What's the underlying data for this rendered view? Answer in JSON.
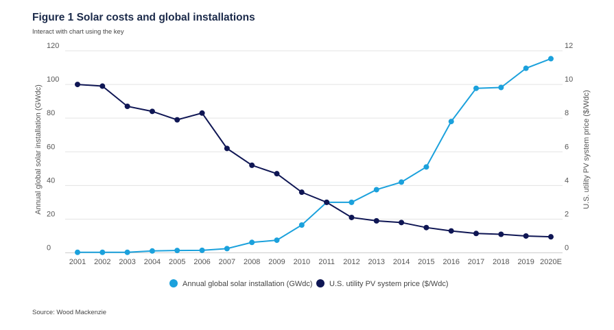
{
  "header": {
    "title": "Figure 1  Solar costs and global installations",
    "subtitle": "Interact with chart using the key"
  },
  "footer": {
    "source": "Source: Wood Mackenzie"
  },
  "chart_data": {
    "type": "line",
    "title": "Solar costs and global installations",
    "categories": [
      "2001",
      "2002",
      "2003",
      "2004",
      "2005",
      "2006",
      "2007",
      "2008",
      "2009",
      "2010",
      "2011",
      "2012",
      "2013",
      "2014",
      "2015",
      "2016",
      "2017",
      "2018",
      "2019",
      "2020E"
    ],
    "ylabel": "Annual global solar installation (GWdc)",
    "ylabel_right": "U.S. utility PV system price ($/Wdc)",
    "ylim": [
      0,
      120
    ],
    "ylim_right": [
      0,
      12
    ],
    "yticks": [
      0,
      20,
      40,
      60,
      80,
      100,
      120
    ],
    "yticks_right": [
      0,
      2,
      4,
      6,
      8,
      10,
      12
    ],
    "grid": true,
    "legend_position": "bottom-center",
    "series": [
      {
        "name": "Annual global solar installation (GWdc)",
        "axis": "left",
        "color": "#1ba1dc",
        "values": [
          0.3,
          0.3,
          0.3,
          1.1,
          1.4,
          1.5,
          2.5,
          6.2,
          7.5,
          16.5,
          30,
          30,
          37.5,
          42,
          51,
          78,
          97.7,
          98.2,
          109.6,
          115.3
        ]
      },
      {
        "name": "U.S. utility PV system price ($/Wdc)",
        "axis": "right",
        "color": "#0f1654",
        "values": [
          10.0,
          9.9,
          8.7,
          8.4,
          7.9,
          8.3,
          6.2,
          5.2,
          4.7,
          3.6,
          3.0,
          2.1,
          1.9,
          1.8,
          1.5,
          1.3,
          1.15,
          1.1,
          1.0,
          0.95
        ]
      }
    ]
  }
}
